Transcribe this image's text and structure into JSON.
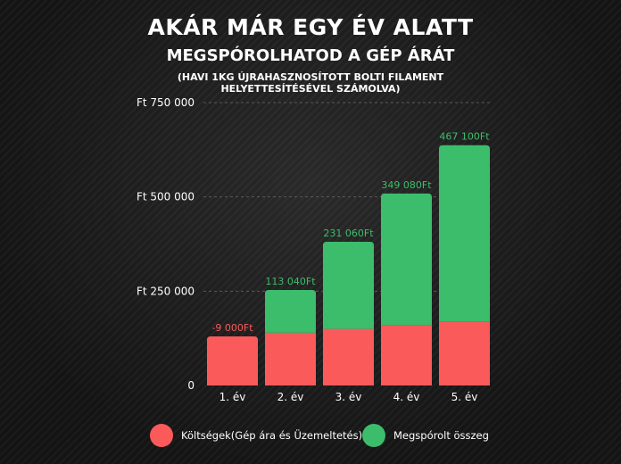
{
  "header": {
    "title": "AKÁR MÁR EGY ÉV ALATT",
    "subtitle": "MEGSPÓROLHATOD A GÉP ÁRÁT",
    "note": "(HAVI 1KG ÚJRAHASZNOSÍTOTT BOLTI FILAMENT HELYETTESÍTÉSÉVEL SZÁMOLVA)"
  },
  "chart_data": {
    "type": "bar",
    "stacked": true,
    "categories": [
      "1. év",
      "2. év",
      "3. év",
      "4. év",
      "5. év"
    ],
    "series": [
      {
        "name": "Költségek(Gép ára és Üzemeltetés)",
        "color": "#fb5a5b",
        "values": [
          130000,
          140000,
          150000,
          160000,
          170000
        ]
      },
      {
        "name": "Megspórolt összeg",
        "color": "#3cbd6b",
        "values": [
          0,
          113040,
          231060,
          349080,
          467100
        ]
      }
    ],
    "data_labels": [
      "-9 000Ft",
      "113 040Ft",
      "231 060Ft",
      "349 080Ft",
      "467 100Ft"
    ],
    "data_label_colors": [
      "#fb5a5b",
      "#3cbd6b",
      "#3cbd6b",
      "#3cbd6b",
      "#3cbd6b"
    ],
    "yticks": [
      0,
      250000,
      500000,
      750000
    ],
    "ytick_labels": [
      "0",
      "Ft 250 000",
      "Ft 500 000",
      "Ft 750 000"
    ],
    "ylim": [
      0,
      750000
    ],
    "grid": true,
    "legend_position": "bottom"
  }
}
